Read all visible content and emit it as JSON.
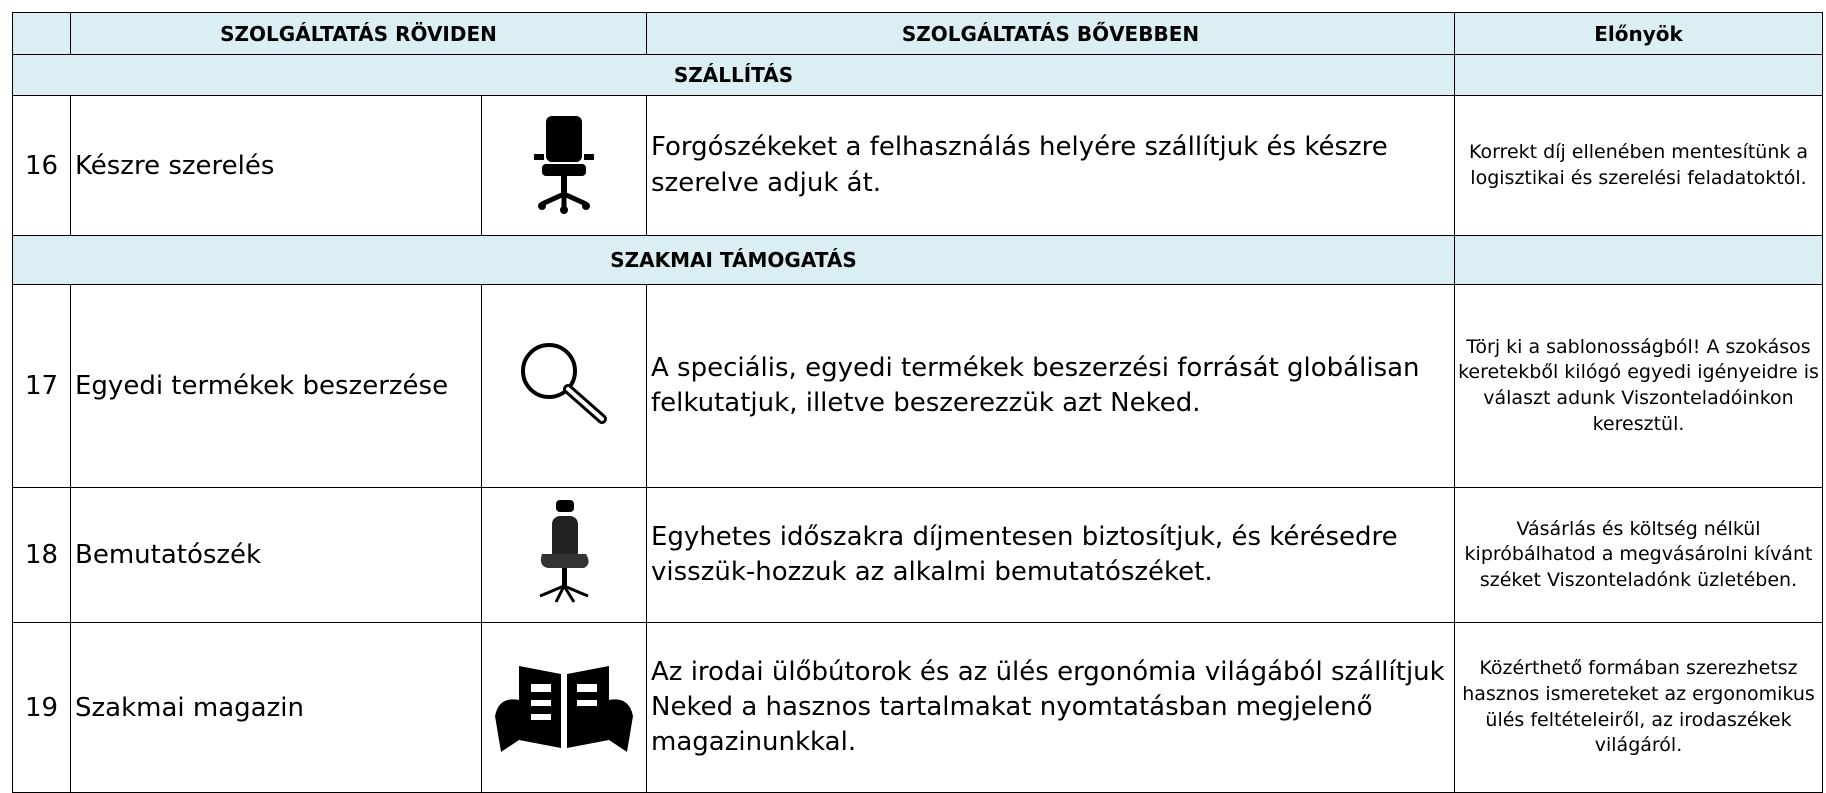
{
  "header": {
    "columns": [
      "SZOLGÁLTATÁS RÖVIDEN",
      "SZOLGÁLTATÁS BŐVEBBEN",
      "Előnyök"
    ]
  },
  "sections": [
    {
      "title": "SZÁLLÍTÁS",
      "rows": [
        {
          "number": 16,
          "name": "Készre szerelés",
          "description": "Forgószékeket a felhasználás helyére szállítjuk és készre szerelve adjuk át.",
          "advantage": "Korrekt díj ellenében mentesítünk a logisztikai és szerelési feladatoktól."
        }
      ]
    },
    {
      "title": "SZAKMAI TÁMOGATÁS",
      "rows": [
        {
          "number": 17,
          "name": "Egyedi termékek beszerzése",
          "description": "A speciális, egyedi termékek beszerzési forrását globálisan felkutatjuk, illetve beszerezzük azt Neked.",
          "advantage": "Törj ki a sablonosságból! A szokásos keretekből kilógó egyedi igényeidre is választ adunk Viszonteladóinkon keresztül."
        },
        {
          "number": 18,
          "name": "Bemutatószék",
          "description": "Egyhetes időszakra díjmentesen biztosítjuk, és kérésedre visszük-hozzuk az alkalmi bemutatószéket.",
          "advantage": "Vásárlás és költség nélkül kipróbálhatod a megvásárolni kívánt széket Viszonteladónk üzletében."
        },
        {
          "number": 19,
          "name": "Szakmai magazin",
          "description": "Az irodai ülőbútorok és az ülés ergonómia világából szállítjuk Neked a hasznos tartalmakat nyomtatásban megjelenő magazinunkkal.",
          "advantage": "Közérthető formában szerezhetsz hasznos ismereteket az ergonomikus ülés feltételeiről, az irodaszékek világáról."
        }
      ]
    }
  ]
}
